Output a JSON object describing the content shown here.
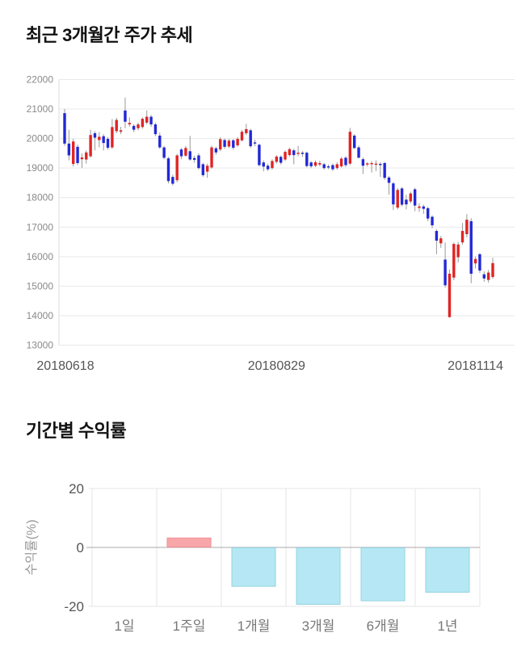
{
  "section1": {
    "title": "최근 3개월간 주가 추세"
  },
  "section2": {
    "title": "기간별 수익률"
  },
  "chart_data": [
    {
      "type": "candlestick",
      "title": "최근 3개월간 주가 추세",
      "x_tick_labels": [
        "20180618",
        "20180829",
        "20181114"
      ],
      "ylim": [
        13000,
        22000
      ],
      "y_ticks": [
        22000,
        21000,
        20000,
        19000,
        18000,
        17000,
        16000,
        15000,
        14000,
        13000
      ],
      "grid": true,
      "legend": "none",
      "colors": {
        "up": "#e02424",
        "down": "#2228d6",
        "wick": "#999999",
        "grid": "#e9e9e9",
        "axis_line": "#dcdcdc",
        "y_tick_text": "#8a8a8a",
        "x_tick_text": "#555555"
      },
      "candles_ohlc": [
        [
          20860,
          21000,
          19750,
          19830
        ],
        [
          19830,
          20300,
          19260,
          19430
        ],
        [
          19140,
          19990,
          19050,
          19900
        ],
        [
          19720,
          19800,
          19100,
          19170
        ],
        [
          19300,
          19500,
          19000,
          19360
        ],
        [
          19290,
          19600,
          19150,
          19530
        ],
        [
          19400,
          20300,
          19350,
          20120
        ],
        [
          20180,
          20250,
          19600,
          20030
        ],
        [
          19950,
          20220,
          19700,
          20060
        ],
        [
          20080,
          20150,
          19600,
          19850
        ],
        [
          19990,
          20050,
          19620,
          19690
        ],
        [
          19700,
          20660,
          19650,
          20390
        ],
        [
          20250,
          20700,
          20180,
          20630
        ],
        [
          20230,
          20400,
          20150,
          20280
        ],
        [
          20950,
          21390,
          20350,
          20570
        ],
        [
          20480,
          20720,
          20400,
          20530
        ],
        [
          20430,
          20480,
          20220,
          20300
        ],
        [
          20350,
          20540,
          20280,
          20480
        ],
        [
          20390,
          20720,
          20330,
          20670
        ],
        [
          20540,
          20950,
          20480,
          20740
        ],
        [
          20740,
          20800,
          20400,
          20480
        ],
        [
          20480,
          20540,
          20080,
          20150
        ],
        [
          20100,
          20200,
          19650,
          19700
        ],
        [
          19700,
          19750,
          19300,
          19350
        ],
        [
          19330,
          19380,
          18480,
          18560
        ],
        [
          18700,
          18780,
          18410,
          18470
        ],
        [
          18590,
          19480,
          18520,
          19430
        ],
        [
          19630,
          19680,
          19300,
          19400
        ],
        [
          19420,
          19750,
          19380,
          19680
        ],
        [
          19570,
          20090,
          19250,
          19290
        ],
        [
          19340,
          19420,
          19180,
          19280
        ],
        [
          19430,
          19500,
          18950,
          19000
        ],
        [
          19130,
          19180,
          18700,
          18760
        ],
        [
          18880,
          19150,
          18670,
          19080
        ],
        [
          19020,
          19760,
          18980,
          19700
        ],
        [
          19670,
          19720,
          19450,
          19530
        ],
        [
          19630,
          20040,
          19570,
          19980
        ],
        [
          19950,
          20000,
          19650,
          19720
        ],
        [
          19730,
          19990,
          19680,
          19930
        ],
        [
          19940,
          19990,
          19620,
          19690
        ],
        [
          19770,
          20050,
          19720,
          19990
        ],
        [
          19940,
          20290,
          19900,
          20230
        ],
        [
          20180,
          20500,
          20120,
          20320
        ],
        [
          20280,
          20330,
          19680,
          19740
        ],
        [
          19870,
          19960,
          19740,
          19830
        ],
        [
          19790,
          19830,
          19050,
          19100
        ],
        [
          19190,
          19260,
          18890,
          19050
        ],
        [
          19080,
          19150,
          18900,
          18960
        ],
        [
          19000,
          19300,
          18950,
          19240
        ],
        [
          19210,
          19440,
          19150,
          19390
        ],
        [
          19380,
          19430,
          19120,
          19180
        ],
        [
          19290,
          19600,
          19240,
          19550
        ],
        [
          19440,
          19690,
          19390,
          19640
        ],
        [
          19600,
          19650,
          19130,
          19440
        ],
        [
          19480,
          19750,
          19400,
          19520
        ],
        [
          19520,
          19580,
          19380,
          19480
        ],
        [
          19520,
          19560,
          19020,
          19070
        ],
        [
          19190,
          19240,
          19000,
          19060
        ],
        [
          19080,
          19260,
          19030,
          19200
        ],
        [
          19120,
          19250,
          19060,
          19170
        ],
        [
          19130,
          19180,
          18950,
          19000
        ],
        [
          19060,
          19120,
          18960,
          19020
        ],
        [
          19100,
          19150,
          18900,
          18960
        ],
        [
          19000,
          19200,
          18950,
          19130
        ],
        [
          19060,
          19380,
          19010,
          19320
        ],
        [
          19350,
          19400,
          19040,
          19100
        ],
        [
          19150,
          20360,
          19100,
          20230
        ],
        [
          20100,
          20150,
          19650,
          19680
        ],
        [
          19700,
          19760,
          19330,
          19350
        ],
        [
          19300,
          19360,
          18800,
          19080
        ],
        [
          19120,
          19200,
          19050,
          19160
        ],
        [
          19150,
          19230,
          18850,
          19170
        ],
        [
          19130,
          19260,
          18900,
          19150
        ],
        [
          19140,
          19200,
          18700,
          19100
        ],
        [
          19170,
          19210,
          18610,
          18670
        ],
        [
          18680,
          18730,
          18100,
          18500
        ],
        [
          18480,
          18530,
          17580,
          17770
        ],
        [
          17660,
          18320,
          17600,
          18260
        ],
        [
          18310,
          18360,
          17700,
          17760
        ],
        [
          17930,
          18100,
          17600,
          17770
        ],
        [
          17870,
          18200,
          17800,
          18140
        ],
        [
          18280,
          18330,
          17540,
          17730
        ],
        [
          17650,
          17810,
          17520,
          17700
        ],
        [
          17700,
          17760,
          17450,
          17620
        ],
        [
          17640,
          17690,
          17200,
          17290
        ],
        [
          17350,
          17400,
          16960,
          17060
        ],
        [
          16870,
          16930,
          16080,
          16540
        ],
        [
          16450,
          16700,
          16300,
          16620
        ],
        [
          15900,
          16480,
          14950,
          15030
        ],
        [
          13950,
          15560,
          13930,
          15420
        ],
        [
          15290,
          16480,
          15200,
          16430
        ],
        [
          15980,
          16500,
          15800,
          16410
        ],
        [
          16480,
          17140,
          16400,
          16870
        ],
        [
          16760,
          17440,
          16650,
          17250
        ],
        [
          17200,
          17300,
          15100,
          15420
        ],
        [
          15770,
          16000,
          15600,
          15920
        ],
        [
          16080,
          16130,
          15450,
          15530
        ],
        [
          15400,
          15500,
          15150,
          15260
        ],
        [
          15210,
          15550,
          15120,
          15460
        ],
        [
          15310,
          15960,
          15250,
          15780
        ]
      ]
    },
    {
      "type": "bar",
      "title": "기간별 수익률",
      "categories": [
        "1일",
        "1주일",
        "1개월",
        "3개월",
        "6개월",
        "1년"
      ],
      "values": [
        0,
        3.2,
        -13.2,
        -19.3,
        -18.1,
        -15.2
      ],
      "ylabel": "수익률(%)",
      "y_ticks": [
        20,
        0,
        -20
      ],
      "ylim": [
        -24,
        22
      ],
      "grid": true,
      "legend": "none",
      "colors": {
        "positive": "#f8a6a9",
        "positive_border": "#ee8f94",
        "negative": "#b5e8f4",
        "negative_border": "#93d3e0",
        "grid": "#e4e4e4",
        "zero_line": "#aaaaaa",
        "tick_text": "#555555",
        "cat_text": "#777777",
        "ylabel_text": "#999999"
      }
    }
  ]
}
